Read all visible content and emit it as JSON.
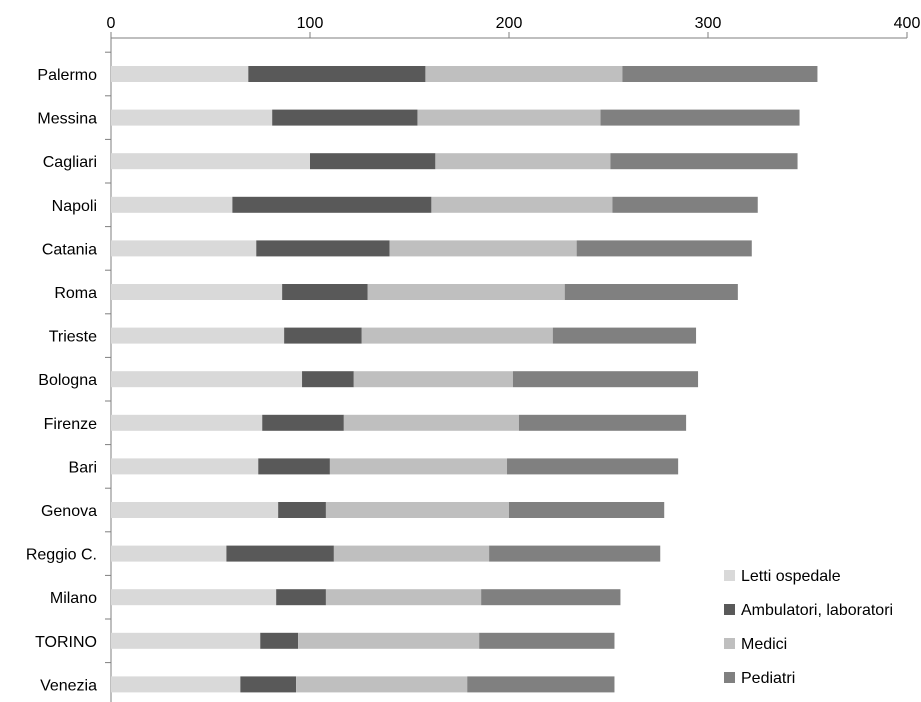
{
  "chart_data": {
    "type": "bar",
    "orientation": "horizontal",
    "stacked": true,
    "title": "",
    "xlabel": "",
    "ylabel": "",
    "xlim": [
      0,
      400
    ],
    "x_ticks": [
      "0",
      "100",
      "200",
      "300",
      "400"
    ],
    "x_axis_position": "top",
    "grid": false,
    "legend_position": "bottom-right",
    "categories": [
      "Palermo",
      "Messina",
      "Cagliari",
      "Napoli",
      "Catania",
      "Roma",
      "Trieste",
      "Bologna",
      "Firenze",
      "Bari",
      "Genova",
      "Reggio C.",
      "Milano",
      "TORINO",
      "Venezia"
    ],
    "series": [
      {
        "name": "Letti ospedale",
        "color": "#d9d9d9",
        "values": [
          69,
          81,
          100,
          61,
          73,
          86,
          87,
          96,
          76,
          74,
          84,
          58,
          83,
          75,
          65
        ]
      },
      {
        "name": "Ambulatori, laboratori",
        "color": "#595959",
        "values": [
          89,
          73,
          63,
          100,
          67,
          43,
          39,
          26,
          41,
          36,
          24,
          54,
          25,
          19,
          28
        ]
      },
      {
        "name": "Medici",
        "color": "#bfbfbf",
        "values": [
          99,
          92,
          88,
          91,
          94,
          99,
          96,
          80,
          88,
          89,
          92,
          78,
          78,
          91,
          86
        ]
      },
      {
        "name": "Pediatri",
        "color": "#808080",
        "values": [
          98,
          100,
          94,
          73,
          88,
          87,
          72,
          93,
          84,
          86,
          78,
          86,
          70,
          68,
          74
        ]
      }
    ]
  }
}
